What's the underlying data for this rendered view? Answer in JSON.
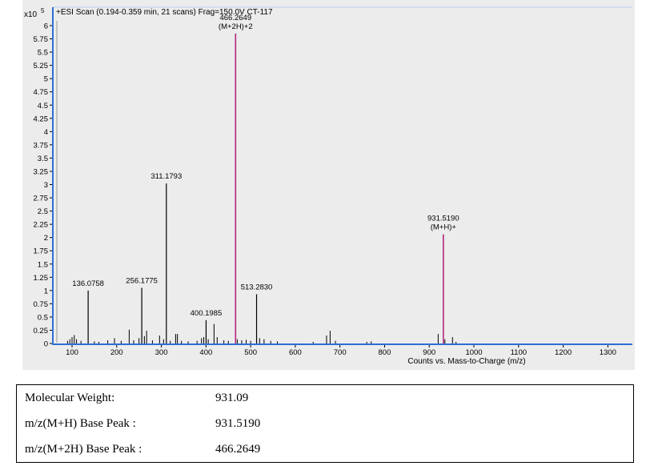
{
  "chart_data": {
    "type": "bar",
    "title": "+ESI Scan (0.194-0.359 min, 21 scans) Frag=150.0V CT-117",
    "y_multiplier_label": "x10",
    "y_multiplier_exp": "5",
    "xlabel": "Counts vs. Mass-to-Charge (m/z)",
    "ylabel": "",
    "xlim": [
      45,
      1365
    ],
    "ylim": [
      0,
      6.2
    ],
    "grid": false,
    "x_ticks": [
      100,
      200,
      300,
      400,
      500,
      600,
      700,
      800,
      900,
      1000,
      1100,
      1200,
      1300
    ],
    "x_tick_labels": [
      "100",
      "200",
      "300",
      "400",
      "500",
      "600",
      "700",
      "800",
      "900",
      "1000",
      "1100",
      "1200",
      "1300"
    ],
    "y_ticks": [
      0,
      0.25,
      0.5,
      0.75,
      1,
      1.25,
      1.5,
      1.75,
      2,
      2.25,
      2.5,
      2.75,
      3,
      3.25,
      3.5,
      3.75,
      4,
      4.25,
      4.5,
      4.75,
      5,
      5.25,
      5.5,
      5.75,
      6
    ],
    "y_tick_labels": [
      "0",
      "0.25",
      "0.5",
      "0.75",
      "1",
      "1.25",
      "1.5",
      "1.75",
      "2",
      "2.25",
      "2.5",
      "2.75",
      "3",
      "3.25",
      "3.5",
      "3.75",
      "4",
      "4.25",
      "4.5",
      "4.75",
      "5",
      "5.25",
      "5.5",
      "5.75",
      "6"
    ],
    "peaks": [
      {
        "x": 136.0758,
        "y": 1.0
      },
      {
        "x": 256.1775,
        "y": 1.05
      },
      {
        "x": 311.1793,
        "y": 3.02
      },
      {
        "x": 400.1985,
        "y": 0.44
      },
      {
        "x": 466.2649,
        "y": 5.85,
        "highlight": true
      },
      {
        "x": 513.283,
        "y": 0.93
      },
      {
        "x": 931.519,
        "y": 2.06,
        "highlight": true
      }
    ],
    "minor_peaks": [
      {
        "x": 90,
        "y": 0.05
      },
      {
        "x": 95,
        "y": 0.08
      },
      {
        "x": 100,
        "y": 0.12
      },
      {
        "x": 105,
        "y": 0.16
      },
      {
        "x": 110,
        "y": 0.08
      },
      {
        "x": 120,
        "y": 0.05
      },
      {
        "x": 150,
        "y": 0.04
      },
      {
        "x": 160,
        "y": 0.03
      },
      {
        "x": 180,
        "y": 0.06
      },
      {
        "x": 195,
        "y": 0.1
      },
      {
        "x": 210,
        "y": 0.05
      },
      {
        "x": 228,
        "y": 0.26
      },
      {
        "x": 238,
        "y": 0.06
      },
      {
        "x": 250,
        "y": 0.1
      },
      {
        "x": 262,
        "y": 0.14
      },
      {
        "x": 267,
        "y": 0.24
      },
      {
        "x": 280,
        "y": 0.06
      },
      {
        "x": 296,
        "y": 0.15
      },
      {
        "x": 305,
        "y": 0.08
      },
      {
        "x": 320,
        "y": 0.05
      },
      {
        "x": 332,
        "y": 0.18
      },
      {
        "x": 336,
        "y": 0.18
      },
      {
        "x": 345,
        "y": 0.05
      },
      {
        "x": 360,
        "y": 0.04
      },
      {
        "x": 380,
        "y": 0.05
      },
      {
        "x": 390,
        "y": 0.1
      },
      {
        "x": 395,
        "y": 0.12
      },
      {
        "x": 405,
        "y": 0.08
      },
      {
        "x": 418,
        "y": 0.37
      },
      {
        "x": 425,
        "y": 0.12
      },
      {
        "x": 440,
        "y": 0.06
      },
      {
        "x": 450,
        "y": 0.05
      },
      {
        "x": 470,
        "y": 0.08
      },
      {
        "x": 480,
        "y": 0.06
      },
      {
        "x": 490,
        "y": 0.07
      },
      {
        "x": 500,
        "y": 0.05
      },
      {
        "x": 520,
        "y": 0.1
      },
      {
        "x": 530,
        "y": 0.08
      },
      {
        "x": 545,
        "y": 0.05
      },
      {
        "x": 560,
        "y": 0.04
      },
      {
        "x": 640,
        "y": 0.03
      },
      {
        "x": 670,
        "y": 0.15
      },
      {
        "x": 678,
        "y": 0.24
      },
      {
        "x": 690,
        "y": 0.05
      },
      {
        "x": 760,
        "y": 0.03
      },
      {
        "x": 770,
        "y": 0.04
      },
      {
        "x": 920,
        "y": 0.18
      },
      {
        "x": 935,
        "y": 0.08
      },
      {
        "x": 952,
        "y": 0.12
      },
      {
        "x": 960,
        "y": 0.03
      }
    ],
    "annotations": [
      {
        "x": 136.0758,
        "y": 1.0,
        "lines": [
          "136.0758"
        ]
      },
      {
        "x": 256.1775,
        "y": 1.05,
        "lines": [
          "256.1775"
        ]
      },
      {
        "x": 311.1793,
        "y": 3.02,
        "lines": [
          "311.1793"
        ]
      },
      {
        "x": 400.1985,
        "y": 0.44,
        "lines": [
          "400.1985"
        ]
      },
      {
        "x": 466.2649,
        "y": 5.85,
        "lines": [
          "466.2649",
          "(M+2H)+2"
        ]
      },
      {
        "x": 513.283,
        "y": 0.93,
        "lines": [
          "513.2830"
        ]
      },
      {
        "x": 931.519,
        "y": 2.06,
        "lines": [
          "931.5190",
          "(M+H)+"
        ]
      }
    ],
    "colors": {
      "peak": "#000000",
      "highlight": "#b0287a",
      "axis": "#2f6fd6",
      "background": "#ececec"
    }
  },
  "info": {
    "rows": [
      {
        "label": "Molecular Weight:",
        "value": "931.09"
      },
      {
        "label": "m/z(M+H) Base Peak :",
        "value": "931.5190"
      },
      {
        "label": "m/z(M+2H) Base Peak :",
        "value": "466.2649"
      }
    ]
  }
}
